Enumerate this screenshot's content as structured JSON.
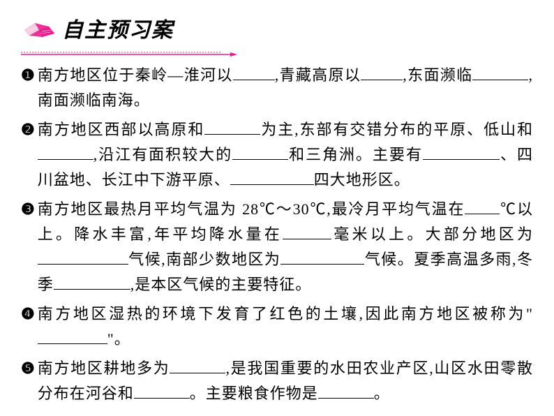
{
  "header": {
    "title": "自主预习案"
  },
  "colors": {
    "pink": "#e91e8c",
    "light_pink": "#f9c9e3",
    "text": "#000000",
    "background": "#ffffff"
  },
  "typography": {
    "title_fontsize": 30,
    "body_fontsize": 22,
    "line_height": 36
  },
  "items": [
    {
      "bullet": "❶",
      "segments": [
        {
          "t": "text",
          "v": "南方地区位于秦岭—淮河以"
        },
        {
          "t": "blank",
          "w": "w50"
        },
        {
          "t": "text",
          "v": ",青藏高原以"
        },
        {
          "t": "blank",
          "w": "w50"
        },
        {
          "t": "text",
          "v": ",东面濒临"
        },
        {
          "t": "blank",
          "w": "w70"
        },
        {
          "t": "text",
          "v": ",南面濒临南海。"
        }
      ]
    },
    {
      "bullet": "❷",
      "segments": [
        {
          "t": "text",
          "v": "南方地区西部以高原和"
        },
        {
          "t": "blank",
          "w": "w70"
        },
        {
          "t": "text",
          "v": "为主,东部有交错分布的平原、低山和"
        },
        {
          "t": "blank",
          "w": "w70"
        },
        {
          "t": "text",
          "v": ",沿江有面积较大的"
        },
        {
          "t": "blank",
          "w": "w70"
        },
        {
          "t": "text",
          "v": "和三角洲。主要有"
        },
        {
          "t": "blank",
          "w": "w100"
        },
        {
          "t": "text",
          "v": "、四川盆地、长江中下游平原、"
        },
        {
          "t": "blank",
          "w": "w110"
        },
        {
          "t": "text",
          "v": "四大地形区。"
        }
      ]
    },
    {
      "bullet": "❸",
      "segments": [
        {
          "t": "text",
          "v": "南方地区最热月平均气温为 28℃～30℃,最冷月平均气温在"
        },
        {
          "t": "blank",
          "w": "w40"
        },
        {
          "t": "text",
          "v": "℃以上。降水丰富,年平均降水量在"
        },
        {
          "t": "blank",
          "w": "w60"
        },
        {
          "t": "text",
          "v": "毫米以上。大部分地区为"
        },
        {
          "t": "blank",
          "w": "w120"
        },
        {
          "t": "text",
          "v": "气候,南部少数地区为"
        },
        {
          "t": "blank",
          "w": "w110"
        },
        {
          "t": "text",
          "v": "气候。夏季高温多雨,冬季"
        },
        {
          "t": "blank",
          "w": "w100"
        },
        {
          "t": "text",
          "v": ",是本区气候的主要特征。"
        }
      ]
    },
    {
      "bullet": "❹",
      "segments": [
        {
          "t": "text",
          "v": "南方地区湿热的环境下发育了红色的土壤,因此南方地区被称为\""
        },
        {
          "t": "blank",
          "w": "w90"
        },
        {
          "t": "text",
          "v": "\"。"
        }
      ]
    },
    {
      "bullet": "❺",
      "segments": [
        {
          "t": "text",
          "v": "南方地区耕地多为"
        },
        {
          "t": "blank",
          "w": "w70"
        },
        {
          "t": "text",
          "v": ",是我国重要的水田农业产区,山区水田零散分布在河谷和"
        },
        {
          "t": "blank",
          "w": "w70"
        },
        {
          "t": "text",
          "v": "。主要粮食作物是"
        },
        {
          "t": "blank",
          "w": "w70"
        },
        {
          "t": "text",
          "v": "。"
        }
      ]
    }
  ]
}
